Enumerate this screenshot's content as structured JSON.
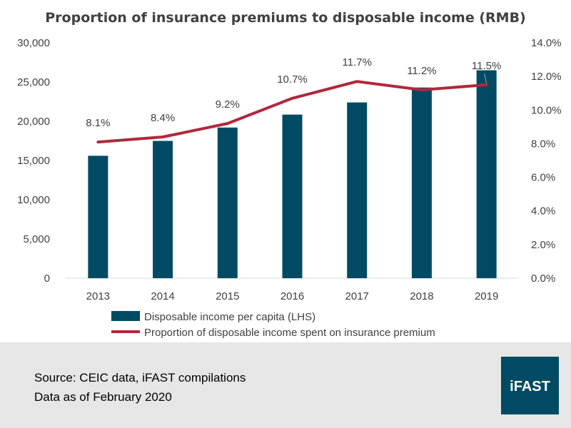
{
  "chart_data": {
    "type": "bar",
    "title": "Proportion of insurance premiums to disposable income (RMB)",
    "categories": [
      "2013",
      "2014",
      "2015",
      "2016",
      "2017",
      "2018",
      "2019"
    ],
    "series": [
      {
        "name": "Disposable income per capita (LHS)",
        "type": "bar",
        "axis": "left",
        "color": "#004B63",
        "values": [
          15600,
          17500,
          19200,
          20850,
          22400,
          24300,
          26500
        ]
      },
      {
        "name": "Proportion of disposable income spent on insurance premium",
        "type": "line",
        "axis": "right",
        "color": "#B1283C",
        "values": [
          8.1,
          8.4,
          9.2,
          10.7,
          11.7,
          11.2,
          11.5
        ],
        "labels": [
          "8.1%",
          "8.4%",
          "9.2%",
          "10.7%",
          "11.7%",
          "11.2%",
          "11.5%"
        ]
      }
    ],
    "left_axis": {
      "range": [
        0,
        30000
      ],
      "ticks": [
        0,
        5000,
        10000,
        15000,
        20000,
        25000,
        30000
      ],
      "tick_labels": [
        "0",
        "5,000",
        "10,000",
        "15,000",
        "20,000",
        "25,000",
        "30,000"
      ]
    },
    "right_axis": {
      "range": [
        0,
        14
      ],
      "ticks": [
        0,
        2,
        4,
        6,
        8,
        10,
        12,
        14
      ],
      "tick_labels": [
        "0.0%",
        "2.0%",
        "4.0%",
        "6.0%",
        "8.0%",
        "10.0%",
        "12.0%",
        "14.0%"
      ]
    },
    "grid": false,
    "legend_position": "bottom"
  },
  "footer": {
    "source": "Source: CEIC data, iFAST compilations",
    "date_note": "Data as of February 2020",
    "logo": "iFAST",
    "background": "#E7E6E6",
    "logo_color": "#004B63"
  }
}
